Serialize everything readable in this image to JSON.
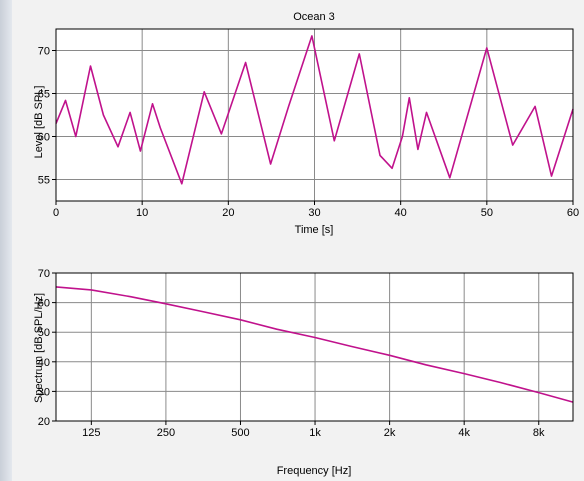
{
  "chart_data": [
    {
      "type": "line",
      "title": "Ocean 3",
      "xlabel": "Time [s]",
      "ylabel": "Level [dB SPL]",
      "xlim": [
        0,
        60
      ],
      "ylim": [
        52.5,
        72.5
      ],
      "xticks": [
        0,
        10,
        20,
        30,
        40,
        50,
        60
      ],
      "xticklabels": [
        "0",
        "10",
        "20",
        "30",
        "40",
        "50",
        "60"
      ],
      "yticks": [
        55,
        60,
        65,
        70
      ],
      "yticklabels": [
        "55",
        "60",
        "65",
        "70"
      ],
      "grid": true,
      "color": "#c0128c",
      "series": [
        {
          "x": [
            0,
            1.1,
            2.3,
            4.0,
            5.5,
            7.2,
            8.6,
            9.8,
            11.2,
            12.1,
            14.6,
            17.2,
            19.2,
            22.0,
            24.9,
            27.0,
            29.7,
            32.3,
            35.2,
            37.6,
            39.0,
            40.2,
            41.0,
            42.0,
            43.0,
            45.7,
            50.0,
            53.0,
            55.6,
            57.5,
            60.0
          ],
          "y": [
            61.5,
            64.2,
            60.0,
            68.2,
            62.5,
            58.8,
            62.8,
            58.3,
            63.8,
            61.0,
            54.5,
            65.2,
            60.3,
            68.6,
            56.8,
            63.5,
            71.7,
            59.5,
            69.6,
            57.8,
            56.3,
            60.0,
            64.5,
            58.5,
            62.8,
            55.2,
            70.3,
            59.0,
            63.5,
            55.4,
            63.2
          ]
        }
      ]
    },
    {
      "type": "line",
      "title": "",
      "xlabel": "Frequency [Hz]",
      "ylabel": "Spectrum [dB SPL/Hz]",
      "xscale": "log",
      "xlim": [
        90,
        11000
      ],
      "ylim": [
        20,
        70
      ],
      "xticks": [
        125,
        250,
        500,
        1000,
        2000,
        4000,
        8000
      ],
      "xticklabels": [
        "125",
        "250",
        "500",
        "1k",
        "2k",
        "4k",
        "8k"
      ],
      "yticks": [
        20,
        30,
        40,
        50,
        60,
        70
      ],
      "yticklabels": [
        "20",
        "30",
        "40",
        "50",
        "60",
        "70"
      ],
      "grid": true,
      "color": "#c0128c",
      "series": [
        {
          "x": [
            90,
            125,
            180,
            250,
            350,
            500,
            700,
            1000,
            1400,
            2000,
            2800,
            4000,
            5600,
            8000,
            11000
          ],
          "y": [
            65.3,
            64.3,
            62.0,
            59.6,
            57.0,
            54.2,
            51.0,
            48.2,
            45.2,
            42.2,
            39.0,
            36.0,
            33.0,
            29.6,
            26.4
          ]
        }
      ]
    }
  ]
}
